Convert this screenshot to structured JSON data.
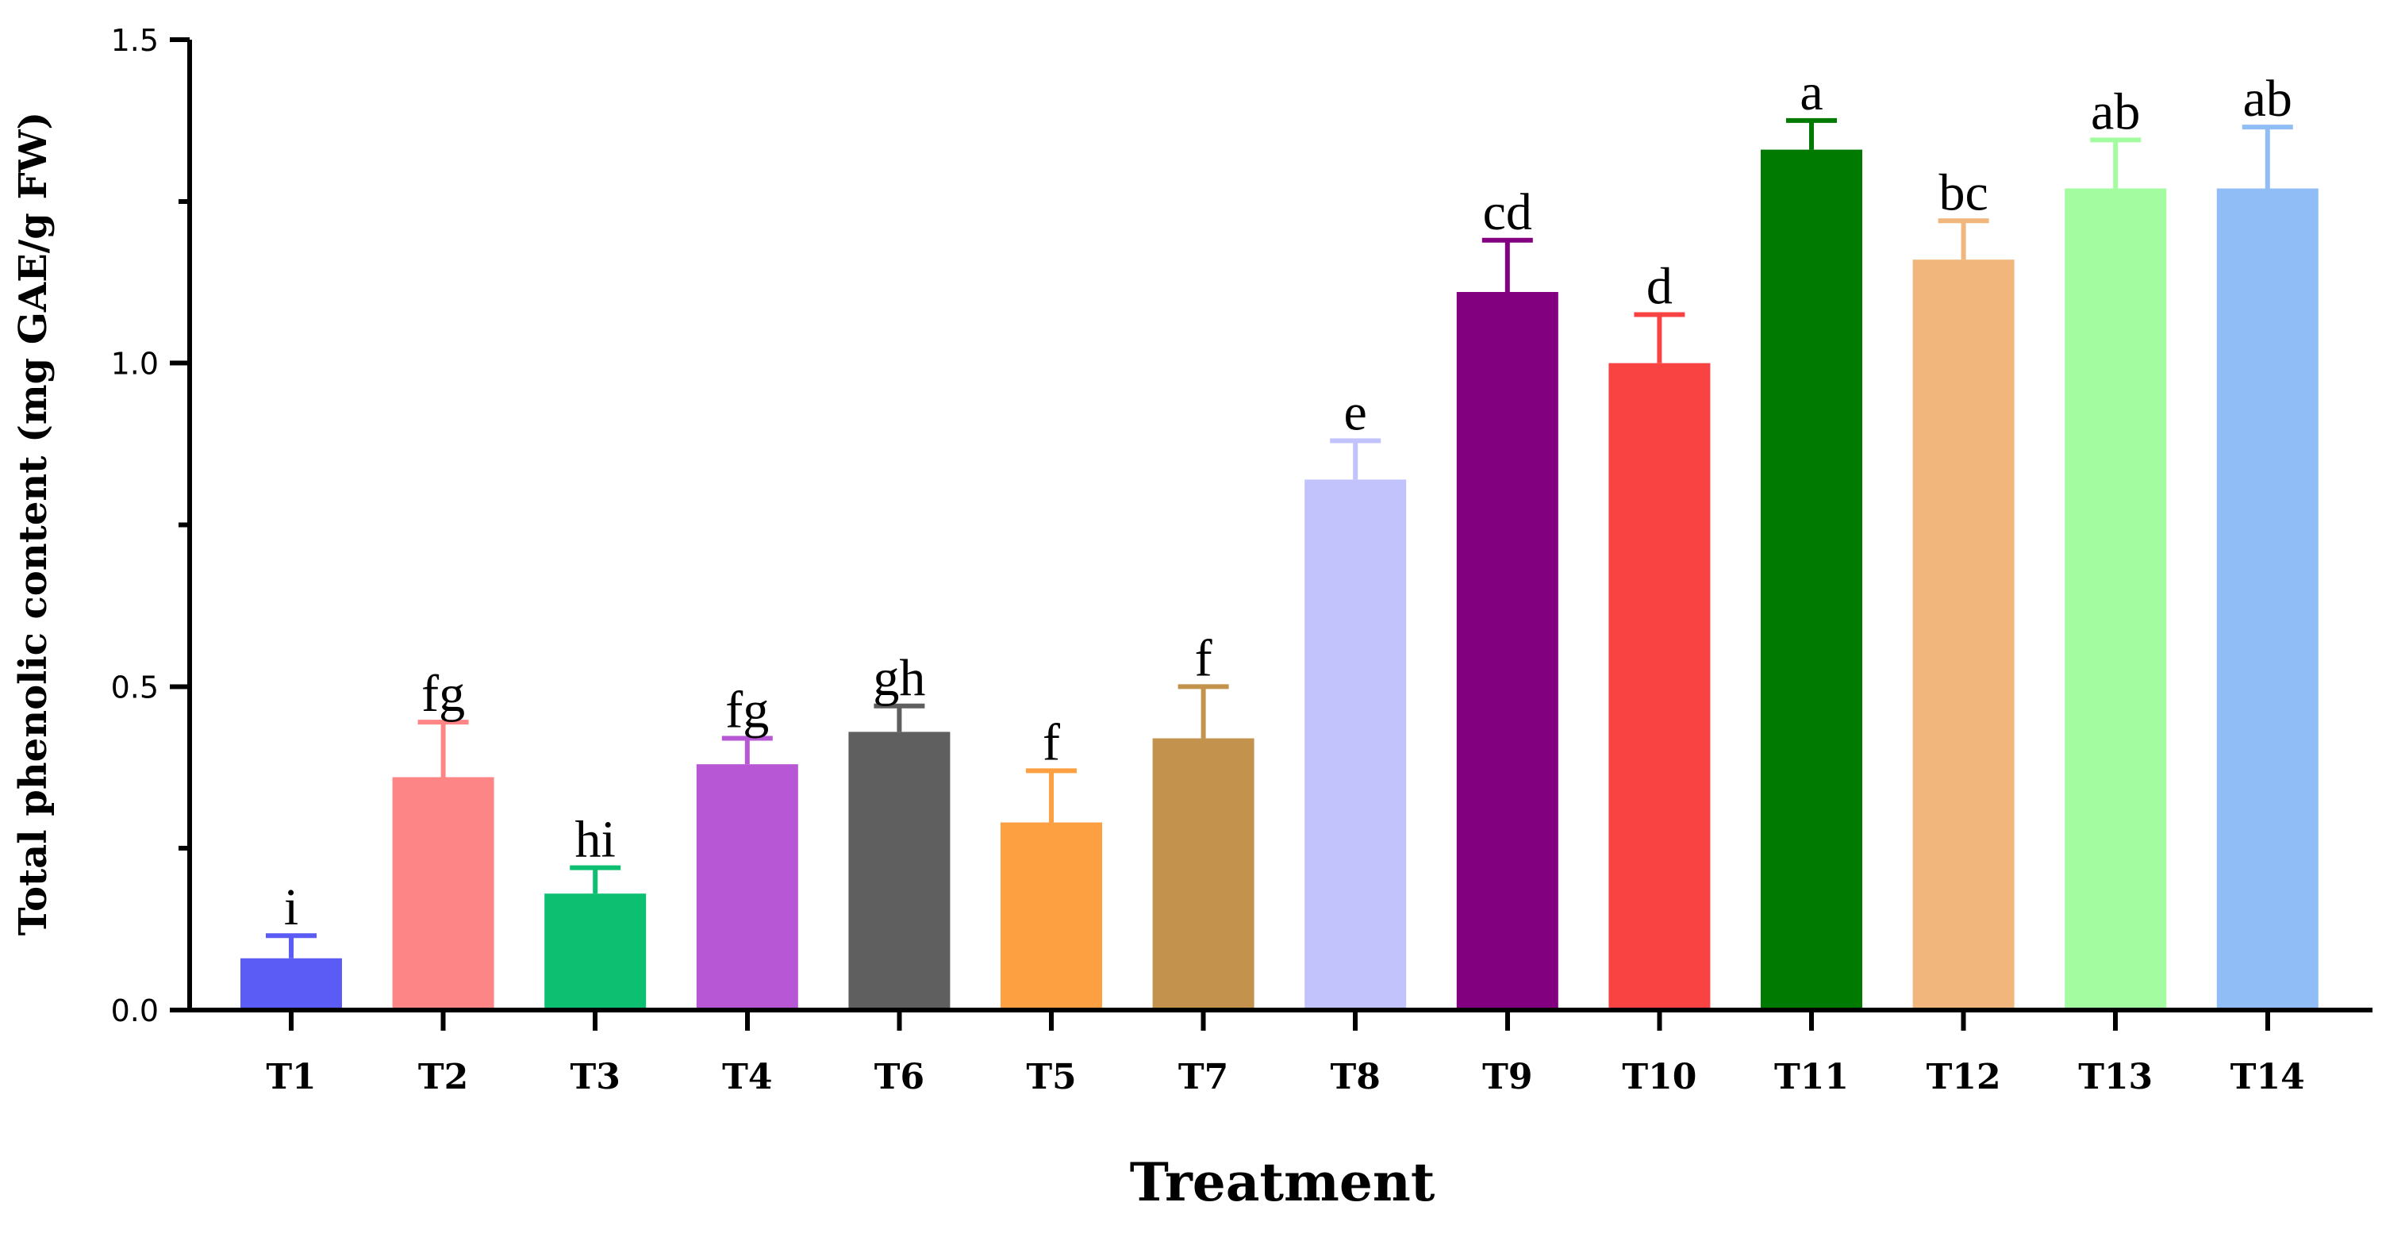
{
  "chart_data": {
    "type": "bar",
    "title": "",
    "xlabel": "Treatment",
    "ylabel": "Total phenolic content (mg GAE/g FW)",
    "ylim": [
      0,
      1.5
    ],
    "yticks": [
      "0.0",
      "0.5",
      "1.0",
      "1.5"
    ],
    "ytick_values": [
      0,
      0.5,
      1.0,
      1.5
    ],
    "minor_ytick_values": [
      0.25,
      0.75,
      1.25
    ],
    "categories": [
      "T1",
      "T2",
      "T3",
      "T4",
      "T6",
      "T5",
      "T7",
      "T8",
      "T9",
      "T10",
      "T11",
      "T12",
      "T13",
      "T14"
    ],
    "values": [
      0.08,
      0.36,
      0.18,
      0.38,
      0.43,
      0.29,
      0.42,
      0.82,
      1.11,
      1.0,
      1.33,
      1.16,
      1.27,
      1.27
    ],
    "errors": [
      0.035,
      0.085,
      0.04,
      0.04,
      0.04,
      0.08,
      0.08,
      0.06,
      0.08,
      0.075,
      0.045,
      0.06,
      0.075,
      0.095
    ],
    "significance_letters": [
      "i",
      "fg",
      "hi",
      "fg",
      "gh",
      "f",
      "f",
      "e",
      "cd",
      "d",
      "a",
      "bc",
      "ab",
      "ab"
    ],
    "colors": [
      "#5b5cf6",
      "#fd8585",
      "#0dbf70",
      "#b757d6",
      "#5f5f5f",
      "#fda041",
      "#c3934d",
      "#c2c2fd",
      "#820080",
      "#f94343",
      "#007a00",
      "#f1b67c",
      "#a3fc9f",
      "#91bdf7"
    ]
  }
}
